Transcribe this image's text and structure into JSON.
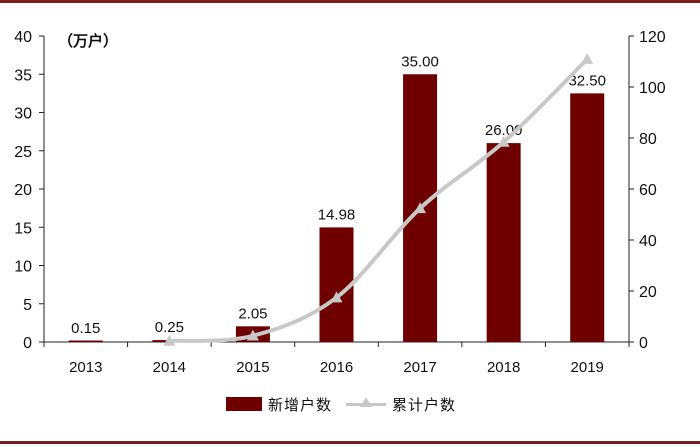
{
  "unit_label": "（万户）",
  "legend": {
    "bar_label": "新增户数",
    "line_label": "累计户数"
  },
  "colors": {
    "bar": "#6e0000",
    "line": "#c8c8c8",
    "axis": "#222222",
    "frame": "#7a1f1f"
  },
  "chart_data": {
    "type": "bar",
    "categories": [
      "2013",
      "2014",
      "2015",
      "2016",
      "2017",
      "2018",
      "2019"
    ],
    "series": [
      {
        "name": "新增户数",
        "type": "bar",
        "axis": "left",
        "values": [
          0.15,
          0.25,
          2.05,
          14.98,
          35.0,
          26.0,
          32.5
        ],
        "data_labels": [
          "0.15",
          "0.25",
          "2.05",
          "14.98",
          "35.00",
          "26.00",
          "32.50"
        ]
      },
      {
        "name": "累计户数",
        "type": "line",
        "axis": "right",
        "values": [
          0.15,
          0.4,
          2.45,
          17.43,
          52.43,
          78.43,
          110.93
        ]
      }
    ],
    "y_left": {
      "min": 0,
      "max": 40,
      "ticks": [
        0,
        5,
        10,
        15,
        20,
        25,
        30,
        35,
        40
      ]
    },
    "y_right": {
      "min": 0,
      "max": 120,
      "ticks": [
        0,
        20,
        40,
        60,
        80,
        100,
        120
      ]
    },
    "grid": false,
    "legend_position": "bottom"
  }
}
